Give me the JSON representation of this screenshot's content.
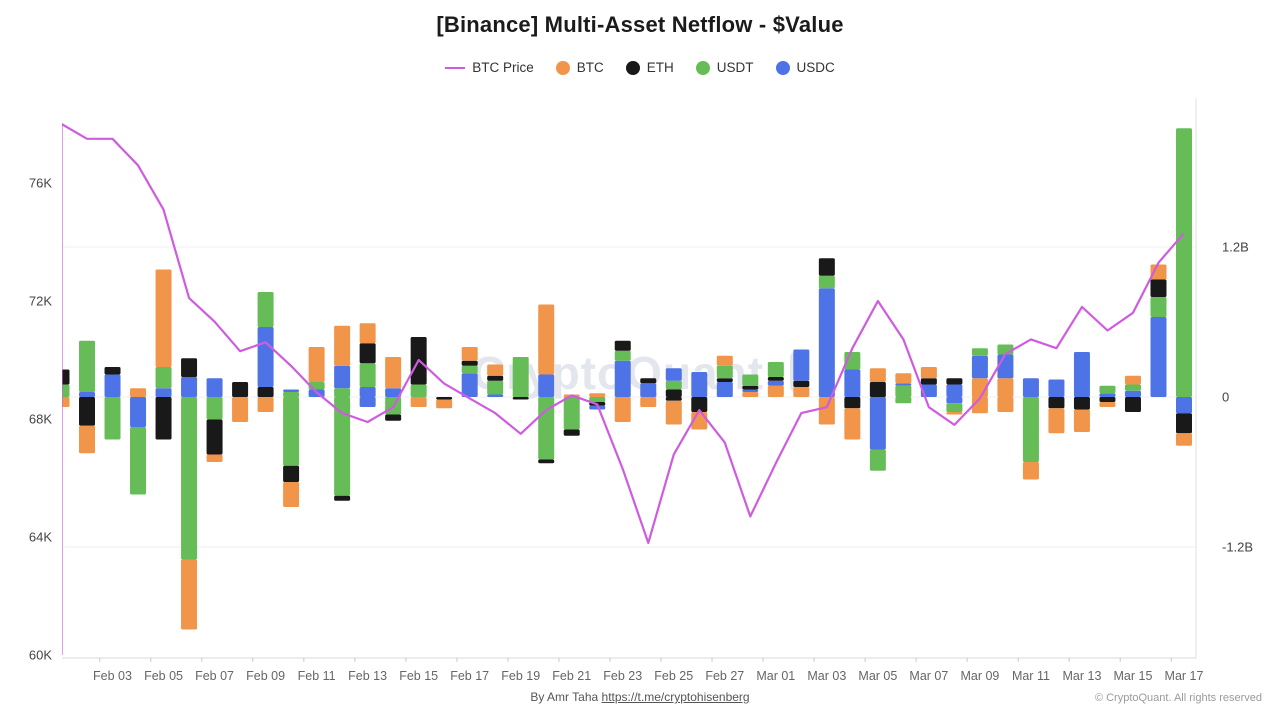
{
  "header": {
    "title": "[Binance] Multi-Asset Netflow - $Value"
  },
  "legend": [
    {
      "label": "BTC Price",
      "type": "line",
      "color": "#cf5ce0"
    },
    {
      "label": "BTC",
      "type": "circle",
      "color": "#f0954a"
    },
    {
      "label": "ETH",
      "type": "circle",
      "color": "#191919"
    },
    {
      "label": "USDT",
      "type": "circle",
      "color": "#66bd58"
    },
    {
      "label": "USDC",
      "type": "circle",
      "color": "#4e73e6"
    }
  ],
  "watermark": {
    "text": "CryptoQuant",
    "color": "#e4e6ee"
  },
  "footer": {
    "by_text": "By Amr Taha",
    "link_text": "https://t.me/cryptohisenberg",
    "copyright": "© CryptoQuant. All rights reserved"
  },
  "chart_data": {
    "type": "mixed-stacked-bar-line",
    "title": "[Binance] Multi-Asset Netflow - $Value",
    "series_colors": {
      "btc": "#f0954a",
      "eth": "#191919",
      "usdt": "#66bd58",
      "usdc": "#4e73e6",
      "price": "#cf5ce0"
    },
    "left_axis": {
      "unit": "BTC price (USD)",
      "range": [
        60000,
        78800
      ],
      "ticks": [
        {
          "label": "76K",
          "value": 76000
        },
        {
          "label": "72K",
          "value": 72000
        },
        {
          "label": "68K",
          "value": 68000
        },
        {
          "label": "64K",
          "value": 64000
        },
        {
          "label": "60K",
          "value": 60000
        }
      ]
    },
    "right_axis": {
      "unit": "netflow ($, billions)",
      "range": [
        -2.09,
        2.38
      ],
      "grid": true,
      "ticks": [
        {
          "label": "1.2B",
          "value": 1.2
        },
        {
          "label": "0",
          "value": 0
        },
        {
          "label": "-1.2B",
          "value": -1.2
        }
      ]
    },
    "days": [
      "Feb 01",
      "Feb 02",
      "Feb 03",
      "Feb 04",
      "Feb 05",
      "Feb 06",
      "Feb 07",
      "Feb 08",
      "Feb 09",
      "Feb 10",
      "Feb 11",
      "Feb 12",
      "Feb 13",
      "Feb 14",
      "Feb 15",
      "Feb 16",
      "Feb 17",
      "Feb 18",
      "Feb 19",
      "Feb 20",
      "Feb 21",
      "Feb 22",
      "Feb 23",
      "Feb 24",
      "Feb 25",
      "Feb 26",
      "Feb 27",
      "Feb 28",
      "Mar 01",
      "Mar 02",
      "Mar 03",
      "Mar 04",
      "Mar 05",
      "Mar 06",
      "Mar 07",
      "Mar 08",
      "Mar 09",
      "Mar 10",
      "Mar 11",
      "Mar 12",
      "Mar 13",
      "Mar 14",
      "Mar 15",
      "Mar 16",
      "Mar 17"
    ],
    "x_axis_labels": [
      "Feb 03",
      "Feb 05",
      "Feb 07",
      "Feb 09",
      "Feb 11",
      "Feb 13",
      "Feb 15",
      "Feb 17",
      "Feb 19",
      "Feb 21",
      "Feb 23",
      "Feb 25",
      "Feb 27",
      "Mar 01",
      "Mar 03",
      "Mar 05",
      "Mar 07",
      "Mar 09",
      "Mar 11",
      "Mar 13",
      "Mar 15",
      "Mar 17"
    ],
    "btc_price": [
      78000,
      77500,
      77500,
      76600,
      75100,
      72100,
      71300,
      70300,
      70600,
      69800,
      68900,
      68200,
      67900,
      68400,
      70000,
      69200,
      68700,
      68200,
      67500,
      68300,
      68800,
      68500,
      66300,
      63800,
      66800,
      68300,
      67200,
      64700,
      66500,
      68200,
      68400,
      70400,
      72000,
      70700,
      68400,
      67800,
      68700,
      70200,
      70700,
      70400,
      71800,
      71000,
      71600,
      73300,
      74300
    ],
    "netflows_billions": [
      {
        "date": "Feb 01",
        "pos": [
          [
            "usdt",
            0.1
          ],
          [
            "eth",
            0.12
          ]
        ],
        "neg": [
          [
            "btc",
            -0.08
          ]
        ]
      },
      {
        "date": "Feb 02",
        "pos": [
          [
            "usdc",
            0.04
          ],
          [
            "usdt",
            0.41
          ]
        ],
        "neg": [
          [
            "eth",
            -0.23
          ],
          [
            "btc",
            -0.22
          ]
        ]
      },
      {
        "date": "Feb 03",
        "pos": [
          [
            "usdc",
            0.18
          ],
          [
            "eth",
            0.06
          ]
        ],
        "neg": [
          [
            "usdt",
            -0.34
          ]
        ]
      },
      {
        "date": "Feb 04",
        "pos": [
          [
            "btc",
            0.07
          ]
        ],
        "neg": [
          [
            "usdc",
            -0.24
          ],
          [
            "usdt",
            -0.54
          ]
        ]
      },
      {
        "date": "Feb 05",
        "pos": [
          [
            "usdc",
            0.07
          ],
          [
            "usdt",
            0.17
          ],
          [
            "btc",
            0.78
          ]
        ],
        "neg": [
          [
            "eth",
            -0.34
          ]
        ]
      },
      {
        "date": "Feb 06",
        "pos": [
          [
            "usdc",
            0.16
          ],
          [
            "eth",
            0.15
          ]
        ],
        "neg": [
          [
            "usdt",
            -1.3
          ],
          [
            "btc",
            -0.56
          ]
        ]
      },
      {
        "date": "Feb 07",
        "pos": [
          [
            "usdc",
            0.15
          ]
        ],
        "neg": [
          [
            "usdt",
            -0.18
          ],
          [
            "eth",
            -0.28
          ],
          [
            "btc",
            -0.06
          ]
        ]
      },
      {
        "date": "Feb 08",
        "pos": [
          [
            "eth",
            0.12
          ]
        ],
        "neg": [
          [
            "btc",
            -0.2
          ]
        ]
      },
      {
        "date": "Feb 09",
        "pos": [
          [
            "eth",
            0.08
          ],
          [
            "usdc",
            0.48
          ],
          [
            "usdt",
            0.28
          ]
        ],
        "neg": [
          [
            "btc",
            -0.12
          ]
        ]
      },
      {
        "date": "Feb 10",
        "pos": [
          [
            "usdt",
            0.04
          ],
          [
            "usdc",
            0.02
          ]
        ],
        "neg": [
          [
            "usdt",
            -0.55
          ],
          [
            "eth",
            -0.13
          ],
          [
            "btc",
            -0.2
          ]
        ]
      },
      {
        "date": "Feb 11",
        "pos": [
          [
            "usdc",
            0.06
          ],
          [
            "usdt",
            0.06
          ],
          [
            "btc",
            0.28
          ]
        ],
        "neg": []
      },
      {
        "date": "Feb 12",
        "pos": [
          [
            "usdt",
            0.07
          ],
          [
            "usdc",
            0.18
          ],
          [
            "btc",
            0.32
          ]
        ],
        "neg": [
          [
            "usdt",
            -0.79
          ],
          [
            "eth",
            -0.04
          ]
        ]
      },
      {
        "date": "Feb 13",
        "pos": [
          [
            "usdc",
            0.08
          ],
          [
            "usdt",
            0.19
          ],
          [
            "eth",
            0.16
          ],
          [
            "btc",
            0.16
          ]
        ],
        "neg": [
          [
            "usdc",
            -0.08
          ]
        ]
      },
      {
        "date": "Feb 14",
        "pos": [
          [
            "usdc",
            0.07
          ],
          [
            "btc",
            0.25
          ]
        ],
        "neg": [
          [
            "usdt",
            -0.14
          ],
          [
            "eth",
            -0.05
          ]
        ]
      },
      {
        "date": "Feb 15",
        "pos": [
          [
            "usdt",
            0.1
          ],
          [
            "eth",
            0.38
          ]
        ],
        "neg": [
          [
            "btc",
            -0.08
          ]
        ]
      },
      {
        "date": "Feb 16",
        "pos": [],
        "neg": [
          [
            "eth",
            -0.02
          ],
          [
            "btc",
            -0.07
          ]
        ]
      },
      {
        "date": "Feb 17",
        "pos": [
          [
            "usdc",
            0.19
          ],
          [
            "usdt",
            0.06
          ],
          [
            "eth",
            0.04
          ],
          [
            "btc",
            0.11
          ]
        ],
        "neg": []
      },
      {
        "date": "Feb 18",
        "pos": [
          [
            "usdc",
            0.02
          ],
          [
            "usdt",
            0.11
          ],
          [
            "eth",
            0.04
          ],
          [
            "btc",
            0.09
          ]
        ],
        "neg": []
      },
      {
        "date": "Feb 19",
        "pos": [
          [
            "usdt",
            0.32
          ]
        ],
        "neg": [
          [
            "eth",
            -0.02
          ]
        ]
      },
      {
        "date": "Feb 20",
        "pos": [
          [
            "usdc",
            0.18
          ],
          [
            "btc",
            0.56
          ]
        ],
        "neg": [
          [
            "usdt",
            -0.5
          ],
          [
            "eth",
            -0.03
          ]
        ]
      },
      {
        "date": "Feb 21",
        "pos": [
          [
            "btc",
            0.02
          ]
        ],
        "neg": [
          [
            "usdt",
            -0.26
          ],
          [
            "eth",
            -0.05
          ]
        ]
      },
      {
        "date": "Feb 22",
        "pos": [
          [
            "btc",
            0.03
          ]
        ],
        "neg": [
          [
            "usdt",
            -0.04
          ],
          [
            "eth",
            -0.03
          ],
          [
            "usdc",
            -0.03
          ]
        ]
      },
      {
        "date": "Feb 23",
        "pos": [
          [
            "usdc",
            0.29
          ],
          [
            "usdt",
            0.08
          ],
          [
            "eth",
            0.08
          ]
        ],
        "neg": [
          [
            "btc",
            -0.2
          ]
        ]
      },
      {
        "date": "Feb 24",
        "pos": [
          [
            "usdc",
            0.11
          ],
          [
            "eth",
            0.04
          ]
        ],
        "neg": [
          [
            "btc",
            -0.08
          ]
        ]
      },
      {
        "date": "Feb 25",
        "pos": [
          [
            "eth",
            0.06
          ],
          [
            "usdt",
            0.07
          ],
          [
            "usdc",
            0.1
          ]
        ],
        "neg": [
          [
            "eth",
            -0.03
          ],
          [
            "btc",
            -0.19
          ]
        ]
      },
      {
        "date": "Feb 26",
        "pos": [
          [
            "usdc",
            0.2
          ]
        ],
        "neg": [
          [
            "eth",
            -0.12
          ],
          [
            "btc",
            -0.14
          ]
        ]
      },
      {
        "date": "Feb 27",
        "pos": [
          [
            "usdc",
            0.12
          ],
          [
            "eth",
            0.03
          ],
          [
            "usdt",
            0.1
          ],
          [
            "btc",
            0.08
          ]
        ],
        "neg": []
      },
      {
        "date": "Feb 28",
        "pos": [
          [
            "btc",
            0.04
          ],
          [
            "usdc",
            0.02
          ],
          [
            "eth",
            0.03
          ],
          [
            "usdt",
            0.09
          ]
        ],
        "neg": []
      },
      {
        "date": "Mar 01",
        "pos": [
          [
            "btc",
            0.09
          ],
          [
            "usdc",
            0.04
          ],
          [
            "eth",
            0.03
          ],
          [
            "usdt",
            0.12
          ]
        ],
        "neg": []
      },
      {
        "date": "Mar 02",
        "pos": [
          [
            "btc",
            0.08
          ],
          [
            "eth",
            0.05
          ],
          [
            "usdc",
            0.25
          ]
        ],
        "neg": []
      },
      {
        "date": "Mar 03",
        "pos": [
          [
            "usdc",
            0.87
          ],
          [
            "usdt",
            0.1
          ],
          [
            "eth",
            0.14
          ]
        ],
        "neg": [
          [
            "btc",
            -0.22
          ]
        ]
      },
      {
        "date": "Mar 04",
        "pos": [
          [
            "usdc",
            0.22
          ],
          [
            "usdt",
            0.14
          ]
        ],
        "neg": [
          [
            "eth",
            -0.09
          ],
          [
            "btc",
            -0.25
          ]
        ]
      },
      {
        "date": "Mar 05",
        "pos": [
          [
            "eth",
            0.12
          ],
          [
            "btc",
            0.11
          ]
        ],
        "neg": [
          [
            "usdc",
            -0.42
          ],
          [
            "usdt",
            -0.17
          ]
        ]
      },
      {
        "date": "Mar 06",
        "pos": [
          [
            "usdt",
            0.09
          ],
          [
            "usdc",
            0.02
          ],
          [
            "btc",
            0.08
          ]
        ],
        "neg": [
          [
            "usdt",
            -0.05
          ]
        ]
      },
      {
        "date": "Mar 07",
        "pos": [
          [
            "usdc",
            0.1
          ],
          [
            "eth",
            0.05
          ],
          [
            "btc",
            0.09
          ]
        ],
        "neg": []
      },
      {
        "date": "Mar 08",
        "pos": [
          [
            "usdc",
            0.1
          ],
          [
            "eth",
            0.05
          ]
        ],
        "neg": [
          [
            "usdc",
            -0.05
          ],
          [
            "usdt",
            -0.07
          ],
          [
            "btc",
            -0.02
          ]
        ]
      },
      {
        "date": "Mar 09",
        "pos": [
          [
            "btc",
            0.15
          ],
          [
            "usdc",
            0.18
          ],
          [
            "usdt",
            0.06
          ]
        ],
        "neg": [
          [
            "btc",
            -0.13
          ]
        ]
      },
      {
        "date": "Mar 10",
        "pos": [
          [
            "btc",
            0.15
          ],
          [
            "usdc",
            0.19
          ],
          [
            "usdt",
            0.08
          ]
        ],
        "neg": [
          [
            "btc",
            -0.12
          ]
        ]
      },
      {
        "date": "Mar 11",
        "pos": [
          [
            "usdc",
            0.15
          ]
        ],
        "neg": [
          [
            "usdt",
            -0.52
          ],
          [
            "btc",
            -0.14
          ]
        ]
      },
      {
        "date": "Mar 12",
        "pos": [
          [
            "usdc",
            0.14
          ]
        ],
        "neg": [
          [
            "eth",
            -0.09
          ],
          [
            "btc",
            -0.2
          ]
        ]
      },
      {
        "date": "Mar 13",
        "pos": [
          [
            "usdc",
            0.36
          ]
        ],
        "neg": [
          [
            "eth",
            -0.1
          ],
          [
            "btc",
            -0.18
          ]
        ]
      },
      {
        "date": "Mar 14",
        "pos": [
          [
            "usdc",
            0.03
          ],
          [
            "usdt",
            0.06
          ]
        ],
        "neg": [
          [
            "eth",
            -0.04
          ],
          [
            "btc",
            -0.04
          ]
        ]
      },
      {
        "date": "Mar 15",
        "pos": [
          [
            "usdc",
            0.05
          ],
          [
            "usdt",
            0.05
          ],
          [
            "btc",
            0.07
          ]
        ],
        "neg": [
          [
            "eth",
            -0.12
          ]
        ]
      },
      {
        "date": "Mar 16",
        "pos": [
          [
            "usdc",
            0.64
          ],
          [
            "usdt",
            0.16
          ],
          [
            "eth",
            0.14
          ],
          [
            "btc",
            0.12
          ]
        ],
        "neg": []
      },
      {
        "date": "Mar 17",
        "pos": [
          [
            "usdt",
            2.15
          ]
        ],
        "neg": [
          [
            "usdc",
            -0.13
          ],
          [
            "eth",
            -0.16
          ],
          [
            "btc",
            -0.1
          ]
        ]
      }
    ]
  }
}
